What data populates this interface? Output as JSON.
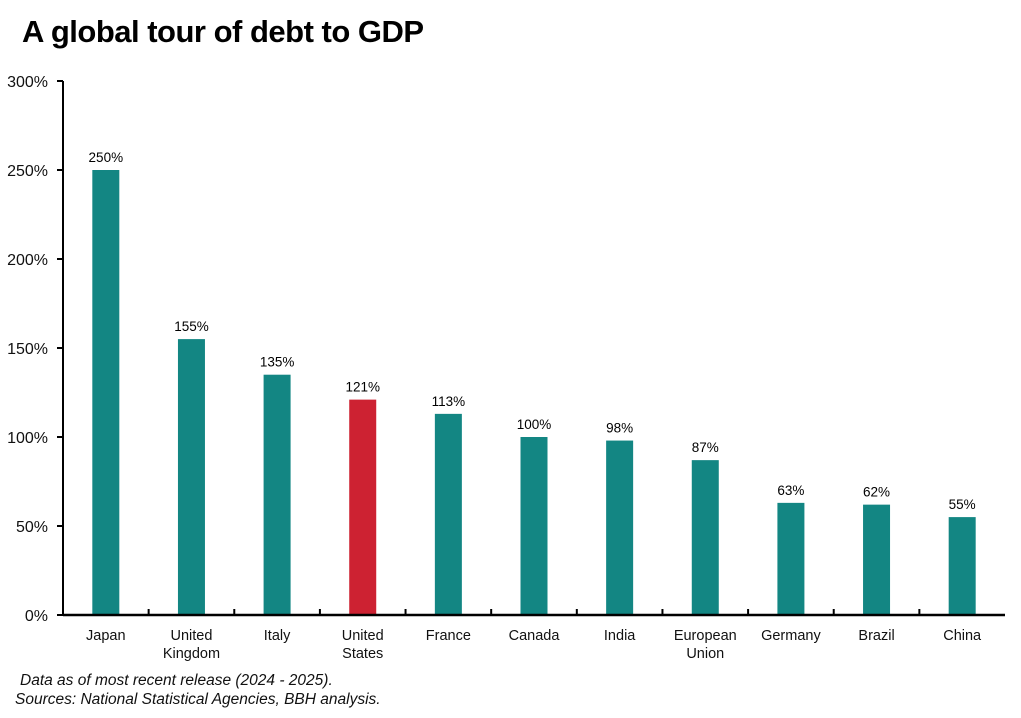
{
  "chart_data": {
    "type": "bar",
    "title": "A global tour of debt to GDP",
    "categories": [
      [
        "Japan"
      ],
      [
        "United",
        "Kingdom"
      ],
      [
        "Italy"
      ],
      [
        "United",
        "States"
      ],
      [
        "France"
      ],
      [
        "Canada"
      ],
      [
        "India"
      ],
      [
        "European",
        "Union"
      ],
      [
        "Germany"
      ],
      [
        "Brazil"
      ],
      [
        "China"
      ]
    ],
    "values": [
      250,
      155,
      135,
      121,
      113,
      100,
      98,
      87,
      63,
      62,
      55
    ],
    "data_labels": [
      "250%",
      "155%",
      "135%",
      "121%",
      "113%",
      "100%",
      "98%",
      "87%",
      "63%",
      "62%",
      "55%"
    ],
    "highlight_index": 3,
    "ylim": [
      0,
      300
    ],
    "yticks": [
      0,
      50,
      100,
      150,
      200,
      250,
      300
    ],
    "ytick_labels": [
      "0%",
      "50%",
      "100%",
      "150%",
      "200%",
      "250%",
      "300%"
    ],
    "grid": false,
    "colors": {
      "bar": "#138683",
      "highlight": "#cd2232",
      "axis": "#000000"
    }
  },
  "footnotes": [
    "Data as of most recent release (2024 - 2025).",
    "Sources: National Statistical Agencies, BBH analysis."
  ]
}
